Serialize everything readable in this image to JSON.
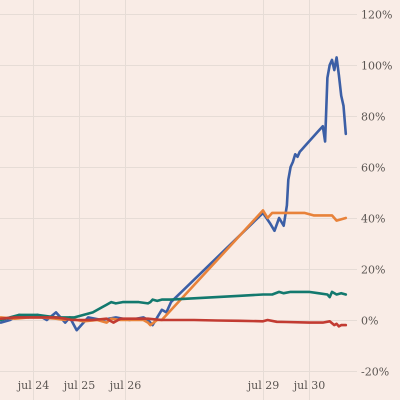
{
  "chart_data": {
    "type": "line",
    "title": "",
    "xlabel": "",
    "ylabel": "",
    "y_unit": "%",
    "ylim": [
      -20,
      120
    ],
    "y_ticks": [
      -20,
      0,
      20,
      40,
      60,
      80,
      100,
      120
    ],
    "y_tick_labels": [
      "-20%",
      "0%",
      "20%",
      "40%",
      "60%",
      "80%",
      "100%",
      "120%"
    ],
    "x_ticks": [
      {
        "label": "jul 24",
        "x": 24.0
      },
      {
        "label": "jul 25",
        "x": 25.0
      },
      {
        "label": "jul 26",
        "x": 26.0
      },
      {
        "label": "jul 29",
        "x": 29.0
      },
      {
        "label": "jul 30",
        "x": 30.0
      }
    ],
    "grid": true,
    "legend": "none",
    "series": [
      {
        "color": "#3c5fa6",
        "x": [
          23.3,
          23.5,
          23.7,
          23.9,
          24.1,
          24.3,
          24.5,
          24.7,
          24.8,
          24.95,
          25.2,
          25.5,
          25.8,
          26.1,
          26.4,
          26.5,
          26.6,
          26.8,
          26.9,
          27.0,
          29.0,
          29.15,
          29.25,
          29.35,
          29.45,
          29.52,
          29.55,
          29.6,
          29.65,
          29.7,
          29.75,
          29.8,
          29.85,
          29.9,
          30.0,
          30.1,
          30.2,
          30.3,
          30.35,
          30.4,
          30.45,
          30.5,
          30.55,
          30.6,
          30.65,
          30.7,
          30.75,
          30.8
        ],
        "y": [
          -1,
          0,
          2,
          1,
          2,
          0,
          3,
          -1,
          1,
          -4,
          1,
          0,
          1,
          0,
          1,
          0,
          -2,
          4,
          3,
          7,
          42,
          38,
          35,
          40,
          37,
          45,
          55,
          60,
          62,
          65,
          64,
          66,
          67,
          68,
          70,
          72,
          74,
          76,
          70,
          95,
          100,
          102,
          98,
          103,
          96,
          88,
          84,
          73
        ]
      },
      {
        "color": "#e8823a",
        "x": [
          23.3,
          23.6,
          23.9,
          24.2,
          24.5,
          24.7,
          24.8,
          24.95,
          25.1,
          25.4,
          25.6,
          25.7,
          25.9,
          26.1,
          26.4,
          26.5,
          26.55,
          26.7,
          26.8,
          29.0,
          29.1,
          29.2,
          29.3,
          29.5,
          29.7,
          29.9,
          30.1,
          30.3,
          30.5,
          30.6,
          30.8
        ],
        "y": [
          1,
          0.5,
          1,
          1,
          0.5,
          0,
          1,
          0,
          -0.5,
          0,
          -1,
          0.5,
          0,
          0,
          0,
          -1,
          -2,
          0,
          0,
          43,
          40,
          42,
          42,
          42,
          42,
          42,
          41,
          41,
          41,
          39,
          40
        ]
      },
      {
        "color": "#13796e",
        "x": [
          23.3,
          23.5,
          23.7,
          23.9,
          24.1,
          24.3,
          24.5,
          24.7,
          24.9,
          25.1,
          25.3,
          25.5,
          25.6,
          25.7,
          25.8,
          25.95,
          26.1,
          26.3,
          26.5,
          26.55,
          26.6,
          26.7,
          26.8,
          26.9,
          27.0,
          27.5,
          28.0,
          28.5,
          29.0,
          29.2,
          29.35,
          29.45,
          29.6,
          29.8,
          30.0,
          30.2,
          30.4,
          30.45,
          30.5,
          30.6,
          30.7,
          30.8
        ],
        "y": [
          0,
          1,
          2,
          2,
          2,
          1.5,
          1,
          1,
          1,
          2,
          3,
          5,
          6,
          7,
          6.5,
          7,
          7,
          7,
          6.5,
          7,
          8,
          7.5,
          8,
          8,
          8,
          8.5,
          9,
          9.5,
          10,
          10,
          11,
          10.5,
          11,
          11,
          11,
          10.5,
          10,
          9,
          11,
          10,
          10.5,
          10
        ]
      },
      {
        "color": "#c23b32",
        "x": [
          23.3,
          23.6,
          23.9,
          24.2,
          24.5,
          24.7,
          24.85,
          25.0,
          25.3,
          25.6,
          25.75,
          25.9,
          26.2,
          26.5,
          26.8,
          27.0,
          27.5,
          28.0,
          28.5,
          29.0,
          29.1,
          29.3,
          29.5,
          30.0,
          30.3,
          30.45,
          30.55,
          30.6,
          30.65,
          30.7,
          30.8
        ],
        "y": [
          0.5,
          1,
          1,
          1,
          1,
          0.5,
          0,
          0,
          0,
          0.5,
          -1,
          0.5,
          0.5,
          0.5,
          0,
          0,
          0,
          -0.2,
          -0.3,
          -0.5,
          0,
          -0.7,
          -0.8,
          -1,
          -1,
          -0.5,
          -2,
          -1.5,
          -2.5,
          -2,
          -2
        ]
      }
    ]
  }
}
